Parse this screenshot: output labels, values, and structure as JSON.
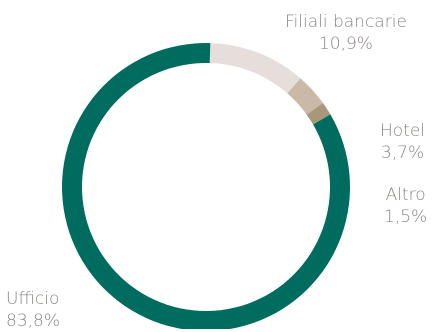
{
  "chart_data": {
    "type": "pie",
    "title": "",
    "categories": [
      "Filiali bancarie",
      "Hotel",
      "Altro",
      "Ufficio"
    ],
    "values": [
      10.9,
      3.7,
      1.5,
      83.8
    ],
    "value_labels": [
      "10,9%",
      "3,7%",
      "1,5%",
      "83,8%"
    ],
    "colors": [
      "#e6deda",
      "#c9b9a6",
      "#a89779",
      "#006b5f"
    ],
    "donut": true,
    "start": "top"
  }
}
